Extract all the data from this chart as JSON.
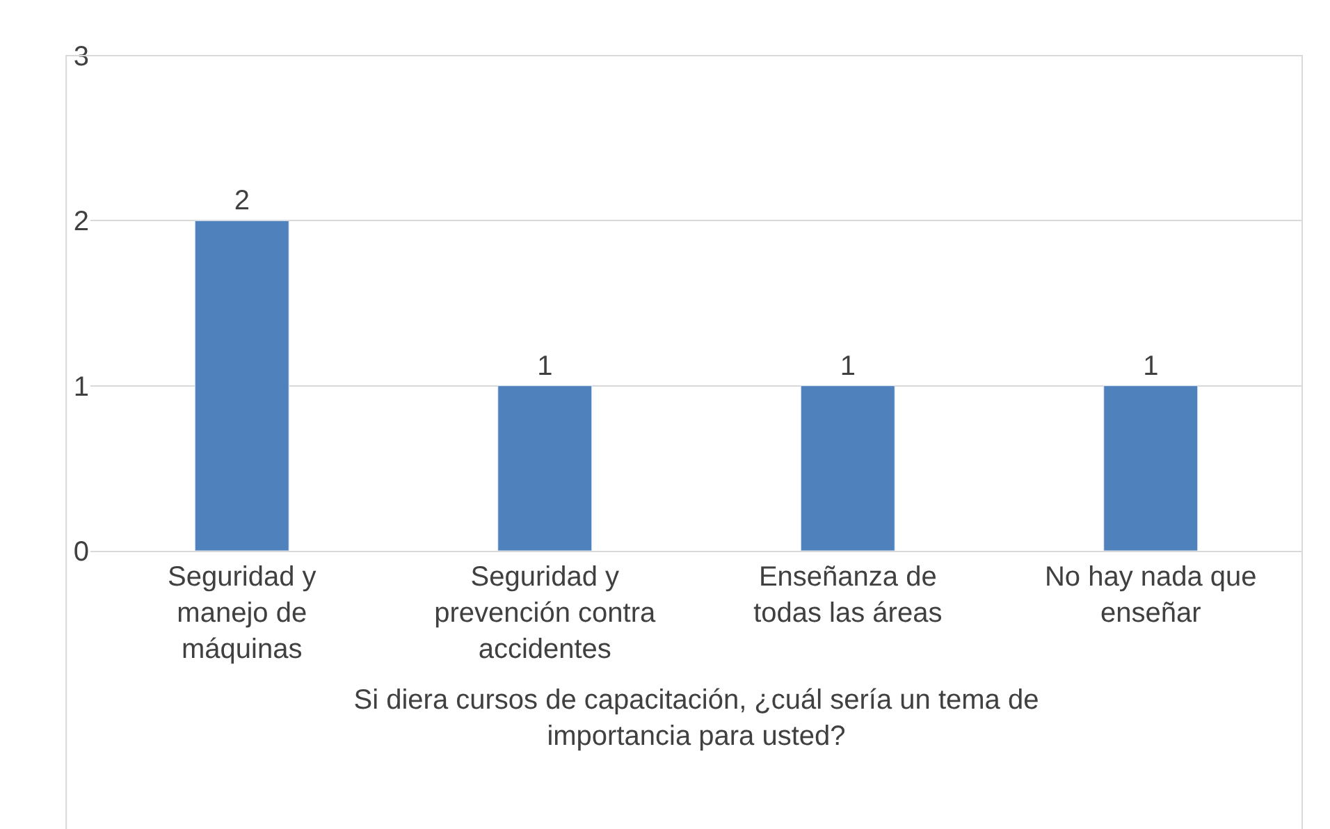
{
  "chart_data": {
    "type": "bar",
    "categories": [
      "Seguridad y manejo de máquinas",
      "Seguridad y prevención contra accidentes",
      "Enseñanza de todas las áreas",
      "No hay nada que enseñar"
    ],
    "values": [
      2,
      1,
      1,
      1
    ],
    "color": "#4f81bd",
    "xlabel": "Si diera cursos de capacitación, ¿cuál sería un tema de importancia para usted?",
    "ylim": [
      0,
      3
    ],
    "yticks": [
      0,
      1,
      2,
      3
    ],
    "grid": "y",
    "data_labels": true,
    "legend": false
  }
}
